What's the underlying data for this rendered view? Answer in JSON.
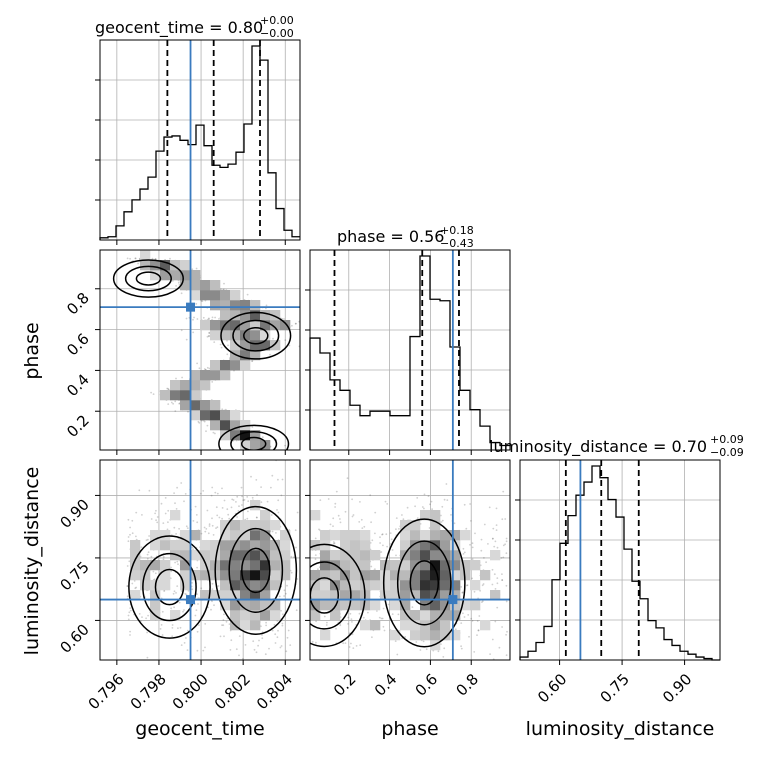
{
  "chart_data": {
    "type": "corner",
    "parameters": [
      "geocent_time",
      "phase",
      "luminosity_distance"
    ],
    "truths": {
      "geocent_time": 0.7995,
      "phase": 0.71,
      "luminosity_distance": 0.65
    },
    "colors": {
      "truth": "#3a7bbf",
      "hist": "#000000",
      "grid": "#b0b0b0",
      "points": "#555555"
    },
    "titles": [
      {
        "param": "geocent_time",
        "text": "geocent_time = 0.80",
        "plus": "+0.00",
        "minus": "−0.00"
      },
      {
        "param": "phase",
        "text": "phase = 0.56",
        "plus": "+0.18",
        "minus": "−0.43"
      },
      {
        "param": "luminosity_distance",
        "text": "luminosity_distance = 0.70",
        "plus": "+0.09",
        "minus": "−0.09"
      }
    ],
    "axis_labels": {
      "geocent_time": "geocent_time",
      "phase": "phase",
      "luminosity_distance": "luminosity_distance"
    },
    "ranges": {
      "geocent_time": [
        0.7952,
        0.8047
      ],
      "phase": [
        0.01,
        0.99
      ],
      "luminosity_distance": [
        0.505,
        0.985
      ]
    },
    "ticks": {
      "geocent_time": [
        "0.796",
        "0.798",
        "0.800",
        "0.802",
        "0.804"
      ],
      "phase": [
        "0.2",
        "0.4",
        "0.6",
        "0.8"
      ],
      "luminosity_distance": [
        "0.60",
        "0.75",
        "0.90"
      ]
    },
    "quantiles": {
      "geocent_time": [
        0.7984,
        0.8006,
        0.8028
      ],
      "phase": [
        0.13,
        0.56,
        0.74
      ],
      "luminosity_distance": [
        0.615,
        0.7,
        0.79
      ]
    },
    "histograms": {
      "geocent_time": {
        "edges": [
          0.7952,
          0.79558,
          0.79596,
          0.79634,
          0.79672,
          0.7971,
          0.79748,
          0.79786,
          0.79824,
          0.79862,
          0.799,
          0.79938,
          0.79976,
          0.80014,
          0.80052,
          0.8009,
          0.80128,
          0.80166,
          0.80204,
          0.80242,
          0.8028,
          0.80318,
          0.80356,
          0.80394,
          0.80432,
          0.8047
        ],
        "counts": [
          2,
          3,
          13,
          26,
          37,
          47,
          58,
          82,
          95,
          96,
          92,
          88,
          106,
          87,
          69,
          67,
          70,
          81,
          107,
          179,
          166,
          62,
          29,
          9,
          3
        ]
      },
      "phase": {
        "edges": [
          0.01,
          0.059,
          0.108,
          0.157,
          0.206,
          0.255,
          0.304,
          0.353,
          0.402,
          0.451,
          0.5,
          0.549,
          0.598,
          0.647,
          0.696,
          0.745,
          0.794,
          0.843,
          0.892,
          0.941,
          0.99
        ],
        "counts": [
          75,
          65,
          47,
          40,
          30,
          23,
          26,
          26,
          23,
          23,
          76,
          130,
          101,
          100,
          69,
          40,
          27,
          16,
          5,
          3
        ]
      },
      "luminosity_distance": {
        "edges": [
          0.505,
          0.5242,
          0.5434,
          0.5626,
          0.5818,
          0.601,
          0.6202,
          0.6394,
          0.6586,
          0.6778,
          0.697,
          0.7162,
          0.7354,
          0.7546,
          0.7738,
          0.793,
          0.8122,
          0.8314,
          0.8506,
          0.8698,
          0.889,
          0.9082,
          0.9274,
          0.9466,
          0.9658,
          0.985
        ],
        "counts": [
          2,
          6,
          12,
          23,
          55,
          80,
          99,
          113,
          122,
          133,
          125,
          110,
          98,
          76,
          54,
          42,
          27,
          22,
          14,
          10,
          6,
          4,
          2,
          1,
          0
        ]
      }
    },
    "density_peaks": {
      "phase_vs_geocent_time": [
        {
          "x": 0.8026,
          "y": 0.57
        },
        {
          "x": 0.8025,
          "y": 0.04
        },
        {
          "x": 0.7975,
          "y": 0.85
        }
      ],
      "luminosity_distance_vs_geocent_time": [
        {
          "x": 0.8026,
          "y": 0.72
        },
        {
          "x": 0.7985,
          "y": 0.68
        }
      ],
      "luminosity_distance_vs_phase": [
        {
          "x": 0.57,
          "y": 0.69
        },
        {
          "x": 0.08,
          "y": 0.66
        }
      ]
    },
    "grid": true,
    "legend": "none"
  }
}
